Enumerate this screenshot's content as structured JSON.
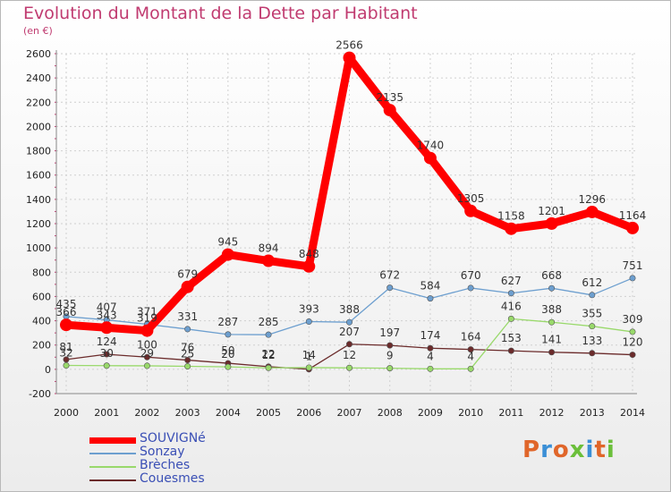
{
  "title": "Evolution du Montant de la Dette par Habitant",
  "unit_label": "(en €)",
  "logo_text": "Proxiti",
  "colors": {
    "title": "#c03b70",
    "axis_text": "#222222",
    "legend_text": "#3a4fb5",
    "grid": "#d0d0d0",
    "SOUVIGNe": "#ff0000",
    "Sonzay": "#6d9fcf",
    "Breches": "#99d96b",
    "Couesmes": "#6b2b2b"
  },
  "chart_data": {
    "type": "line",
    "title": "Evolution du Montant de la Dette par Habitant",
    "subtitle": "(en €)",
    "xlabel": "",
    "ylabel": "",
    "x": [
      "2000",
      "2001",
      "2002",
      "2003",
      "2004",
      "2005",
      "2006",
      "2007",
      "2008",
      "2009",
      "2010",
      "2011",
      "2012",
      "2013",
      "2014"
    ],
    "ylim": [
      -200,
      2600
    ],
    "yticks": [
      -200,
      0,
      200,
      400,
      600,
      800,
      1000,
      1200,
      1400,
      1600,
      1800,
      2000,
      2200,
      2400,
      2600
    ],
    "grid": true,
    "legend_position": "bottom-left",
    "series": [
      {
        "name": "SOUVIGNé",
        "key": "SOUVIGNe",
        "values": [
          366,
          343,
          319,
          679,
          945,
          894,
          848,
          2566,
          2135,
          1740,
          1305,
          1158,
          1201,
          1296,
          1164
        ],
        "labels": [
          "366",
          "343",
          "319",
          "679",
          "945",
          "894",
          "848",
          "2566",
          "2135",
          "1740",
          "1305",
          "1158",
          "1201",
          "1296",
          "1164"
        ]
      },
      {
        "name": "Sonzay",
        "key": "Sonzay",
        "values": [
          435,
          407,
          371,
          331,
          287,
          285,
          393,
          388,
          672,
          584,
          670,
          627,
          668,
          612,
          751
        ],
        "labels": [
          "435",
          "407",
          "371",
          "331",
          "287",
          "285",
          "393",
          "388",
          "672",
          "584",
          "670",
          "627",
          "668",
          "612",
          "751"
        ]
      },
      {
        "name": "Brèches",
        "key": "Breches",
        "values": [
          32,
          30,
          29,
          25,
          20,
          12,
          14,
          12,
          9,
          4,
          4,
          416,
          388,
          355,
          309
        ],
        "labels": [
          "32",
          "30",
          "29",
          "25",
          "20",
          "12",
          "14",
          "12",
          "9",
          "4",
          "4",
          "416",
          "388",
          "355",
          "309"
        ]
      },
      {
        "name": "Couesmes",
        "key": "Couesmes",
        "values": [
          81,
          124,
          100,
          76,
          50,
          22,
          1,
          207,
          197,
          174,
          164,
          153,
          141,
          133,
          120
        ],
        "labels": [
          "81",
          "124",
          "100",
          "76",
          "50",
          "22",
          "1",
          "207",
          "197",
          "174",
          "164",
          "153",
          "141",
          "133",
          "120"
        ]
      }
    ]
  }
}
